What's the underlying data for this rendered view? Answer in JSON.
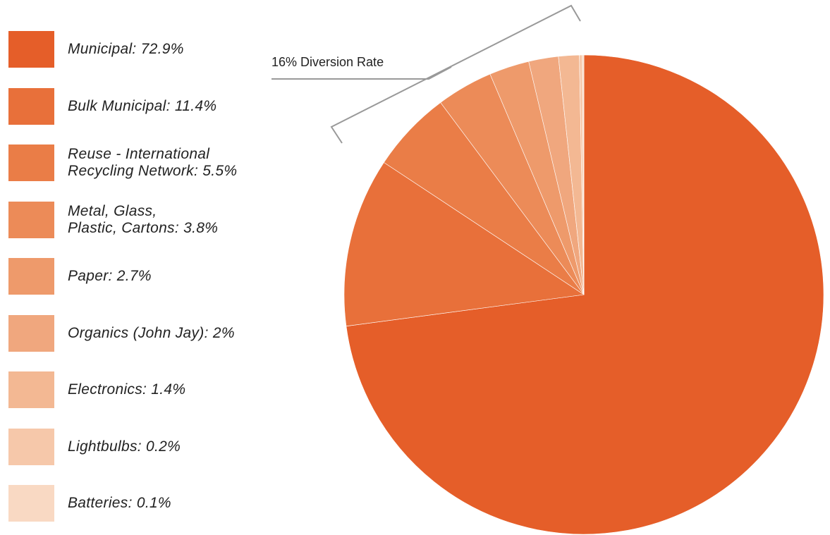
{
  "chart_data": {
    "type": "pie",
    "categories": [
      "Municipal: 72.9%",
      "Bulk Municipal: 11.4%",
      "Reuse - International\nRecycling Network: 5.5%",
      "Metal, Glass,\nPlastic, Cartons: 3.8%",
      "Paper: 2.7%",
      "Organics (John Jay): 2%",
      "Electronics: 1.4%",
      "Lightbulbs: 0.2%",
      "Batteries: 0.1%"
    ],
    "values": [
      72.9,
      11.4,
      5.5,
      3.8,
      2.7,
      2,
      1.4,
      0.2,
      0.1
    ],
    "colors": [
      "#e55e29",
      "#e8703a",
      "#ea7d47",
      "#ec8b58",
      "#ee9a6b",
      "#f0a77e",
      "#f3b893",
      "#f6c8aa",
      "#f9d9c3"
    ],
    "annotation": "16% Diversion Rate"
  }
}
